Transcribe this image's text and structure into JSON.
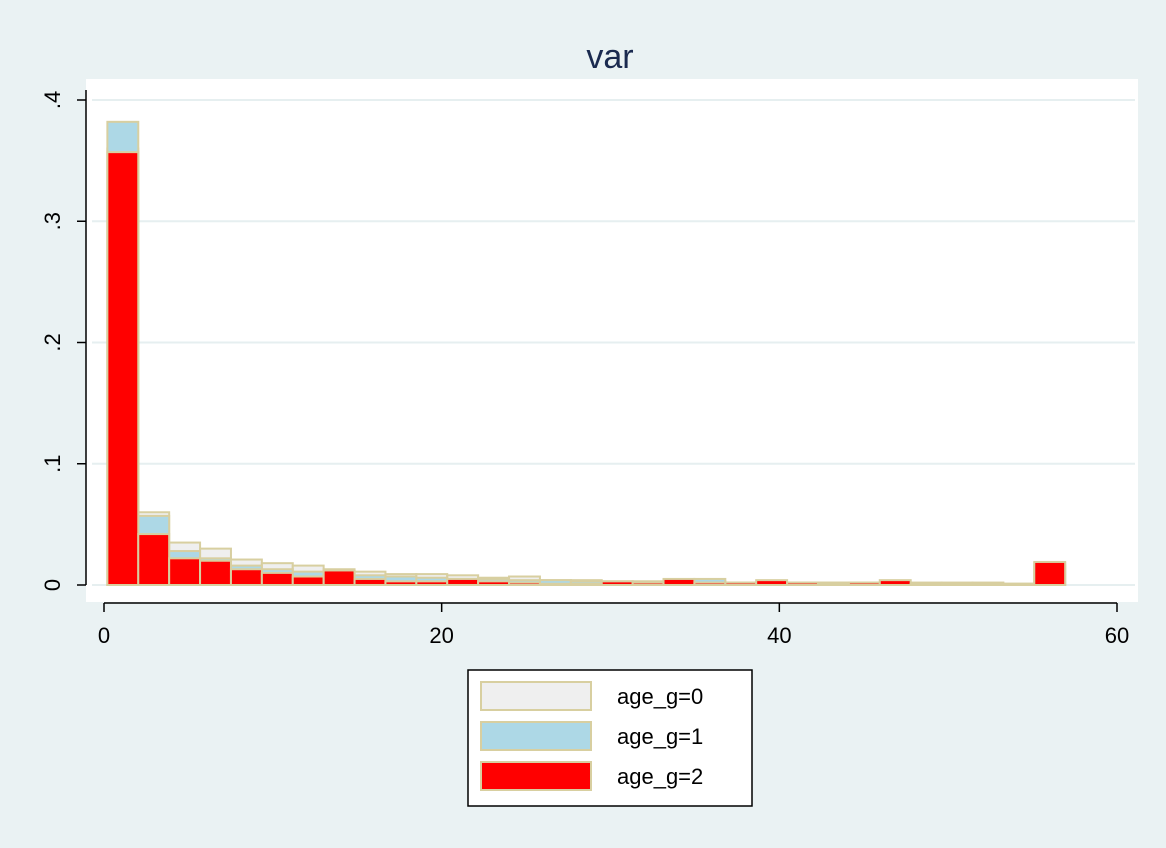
{
  "chart_data": {
    "type": "bar",
    "title": "var",
    "xlabel": "",
    "ylabel": "",
    "xlim": [
      0,
      60
    ],
    "ylim": [
      0,
      0.4
    ],
    "x_ticks": [
      0,
      20,
      40,
      60
    ],
    "x_tick_labels": [
      "0",
      "20",
      "40",
      "60"
    ],
    "y_ticks": [
      0,
      0.1,
      0.2,
      0.3,
      0.4
    ],
    "y_tick_labels": [
      "0",
      ".1",
      ".2",
      ".3",
      ".4"
    ],
    "grid": true,
    "legend_position": "bottom-center",
    "bin_width": 1.83,
    "bin_start": 0.2,
    "series": [
      {
        "name": "age_g=0",
        "color": "#efefef",
        "values": [
          0.36,
          0.06,
          0.035,
          0.03,
          0.021,
          0.018,
          0.016,
          0.013,
          0.011,
          0.009,
          0.009,
          0.008,
          0.006,
          0.007,
          0.004,
          0.004,
          0.003,
          0.003,
          0.003,
          0.003,
          0.002,
          0.002,
          0.002,
          0.002,
          0.002,
          0.002,
          0.002,
          0.002,
          0.002,
          0.001,
          0.018
        ]
      },
      {
        "name": "age_g=1",
        "color": "#add8e6",
        "values": [
          0.382,
          0.057,
          0.028,
          0.022,
          0.016,
          0.013,
          0.011,
          0.009,
          0.008,
          0.007,
          0.006,
          0.005,
          0.005,
          0.004,
          0.004,
          0.003,
          0.003,
          0.003,
          0.004,
          0.005,
          0.002,
          0.002,
          0.002,
          0.002,
          0.001,
          0.001,
          0.001,
          0.001,
          0.001,
          0.001,
          0.016
        ]
      },
      {
        "name": "age_g=2",
        "color": "#ff0000",
        "values": [
          0.357,
          0.042,
          0.022,
          0.02,
          0.013,
          0.01,
          0.007,
          0.012,
          0.005,
          0.003,
          0.003,
          0.005,
          0.003,
          0.002,
          0.001,
          0.001,
          0.003,
          0.002,
          0.005,
          0.002,
          0.002,
          0.004,
          0.002,
          0.001,
          0.002,
          0.004,
          0.001,
          0.001,
          0.001,
          0.001,
          0.019
        ]
      }
    ]
  },
  "colors": {
    "background": "#eaf2f3",
    "plot_background": "#ffffff",
    "grid": "#e6eff0",
    "bar_outline": "#d8cfa0",
    "title": "#1a2a4f"
  }
}
